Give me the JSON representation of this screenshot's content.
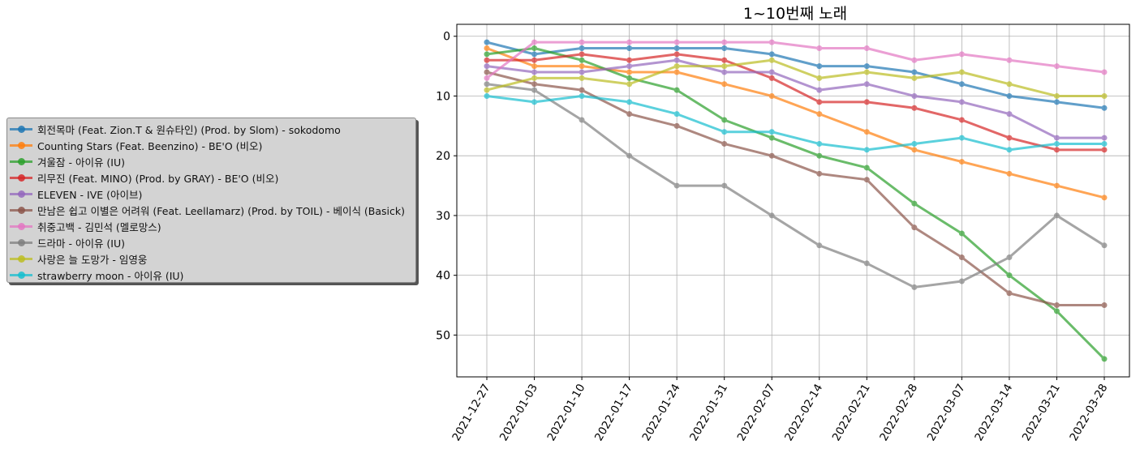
{
  "chart_data": {
    "type": "line",
    "title": "1~10번째 노래",
    "xlabel": "",
    "ylabel": "",
    "y_inverted": true,
    "ylim": [
      57,
      -2
    ],
    "yticks": [
      0,
      10,
      20,
      30,
      40,
      50
    ],
    "grid": true,
    "legend_position": "left",
    "x": [
      "2021-12-27",
      "2022-01-03",
      "2022-01-10",
      "2022-01-17",
      "2022-01-24",
      "2022-01-31",
      "2022-02-07",
      "2022-02-14",
      "2022-02-21",
      "2022-02-28",
      "2022-03-07",
      "2022-03-14",
      "2022-03-21",
      "2022-03-28"
    ],
    "series": [
      {
        "name": "회전목마 (Feat. Zion.T & 원슈타인) (Prod. by Slom) - sokodomo",
        "color": "#1f77b4",
        "values": [
          1,
          3,
          2,
          2,
          2,
          2,
          3,
          5,
          5,
          6,
          8,
          10,
          11,
          12
        ]
      },
      {
        "name": "Counting Stars (Feat. Beenzino) - BE'O (비오)",
        "color": "#ff7f0e",
        "values": [
          2,
          5,
          5,
          6,
          6,
          8,
          10,
          13,
          16,
          19,
          21,
          23,
          25,
          27
        ]
      },
      {
        "name": "겨울잠 - 아이유 (IU)",
        "color": "#2ca02c",
        "values": [
          3,
          2,
          4,
          7,
          9,
          14,
          17,
          20,
          22,
          28,
          33,
          40,
          46,
          54
        ]
      },
      {
        "name": "리무진 (Feat. MINO) (Prod. by GRAY) - BE'O (비오)",
        "color": "#d62728",
        "values": [
          4,
          4,
          3,
          4,
          3,
          4,
          7,
          11,
          11,
          12,
          14,
          17,
          19,
          19
        ]
      },
      {
        "name": "ELEVEN - IVE (아이브)",
        "color": "#9467bd",
        "values": [
          5,
          6,
          6,
          5,
          4,
          6,
          6,
          9,
          8,
          10,
          11,
          13,
          17,
          17
        ]
      },
      {
        "name": "만남은 쉽고 이별은 어려워 (Feat. Leellamarz) (Prod. by TOIL) - 베이식 (Basick)",
        "color": "#8c564b",
        "values": [
          6,
          8,
          9,
          13,
          15,
          18,
          20,
          23,
          24,
          32,
          37,
          43,
          45,
          45
        ]
      },
      {
        "name": "취중고백 - 김민석 (멜로망스)",
        "color": "#e377c2",
        "values": [
          7,
          1,
          1,
          1,
          1,
          1,
          1,
          2,
          2,
          4,
          3,
          4,
          5,
          6
        ]
      },
      {
        "name": "드라마 - 아이유 (IU)",
        "color": "#7f7f7f",
        "values": [
          8,
          9,
          14,
          20,
          25,
          25,
          30,
          35,
          38,
          42,
          41,
          37,
          30,
          35
        ]
      },
      {
        "name": "사랑은 늘 도망가 - 임영웅",
        "color": "#bcbd22",
        "values": [
          9,
          7,
          7,
          8,
          5,
          5,
          4,
          7,
          6,
          7,
          6,
          8,
          10,
          10
        ]
      },
      {
        "name": "strawberry moon - 아이유 (IU)",
        "color": "#17becf",
        "values": [
          10,
          11,
          10,
          11,
          13,
          16,
          16,
          18,
          19,
          18,
          17,
          19,
          18,
          18
        ]
      }
    ]
  }
}
